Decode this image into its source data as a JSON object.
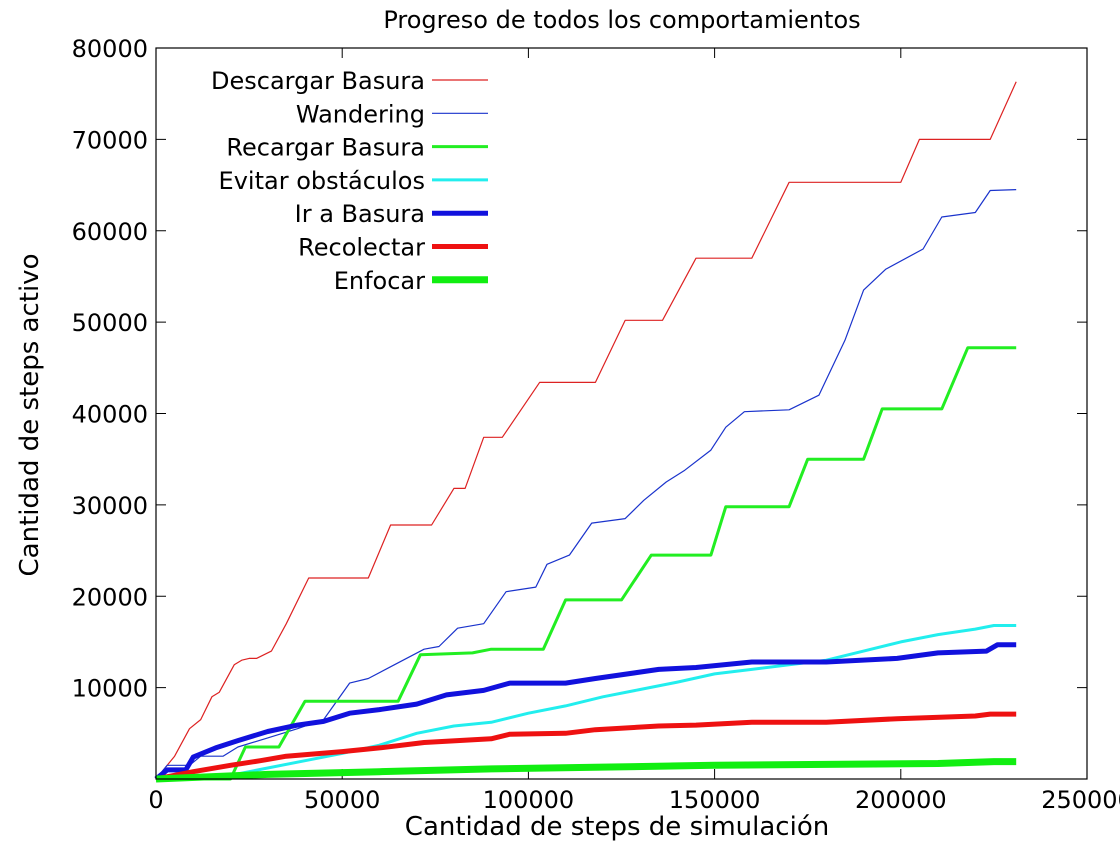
{
  "chart_data": {
    "type": "line",
    "title": "Progreso de todos los comportamientos",
    "xlabel": "Cantidad de steps de simulación",
    "ylabel": "Cantidad de steps activo",
    "xlim": [
      0,
      250000
    ],
    "ylim": [
      0,
      80000
    ],
    "x_ticks": [
      "0",
      "50000",
      "100000",
      "150000",
      "200000",
      "250000"
    ],
    "y_ticks": [
      "10000",
      "20000",
      "30000",
      "40000",
      "50000",
      "60000",
      "70000",
      "80000"
    ],
    "grid": false,
    "legend_position": "top-left",
    "series": [
      {
        "name": "Descargar Basura",
        "color": "#dd2222",
        "line": "thin",
        "points": [
          [
            0,
            0
          ],
          [
            5000,
            2500
          ],
          [
            9000,
            5500
          ],
          [
            12000,
            6500
          ],
          [
            15000,
            9000
          ],
          [
            17000,
            9500
          ],
          [
            21000,
            12500
          ],
          [
            23000,
            13000
          ],
          [
            25000,
            13200
          ],
          [
            27000,
            13200
          ],
          [
            31000,
            14000
          ],
          [
            35000,
            17000
          ],
          [
            41000,
            22000
          ],
          [
            57000,
            22000
          ],
          [
            63000,
            27800
          ],
          [
            74000,
            27800
          ],
          [
            80000,
            31800
          ],
          [
            83000,
            31800
          ],
          [
            88000,
            37400
          ],
          [
            93000,
            37400
          ],
          [
            103000,
            43400
          ],
          [
            118000,
            43400
          ],
          [
            126000,
            50200
          ],
          [
            136000,
            50200
          ],
          [
            145000,
            57000
          ],
          [
            160000,
            57000
          ],
          [
            170000,
            65300
          ],
          [
            200000,
            65300
          ],
          [
            205000,
            70000
          ],
          [
            224000,
            70000
          ],
          [
            231000,
            76300
          ]
        ]
      },
      {
        "name": "Wandering",
        "color": "#1a33cc",
        "line": "thin",
        "points": [
          [
            0,
            0
          ],
          [
            3000,
            1500
          ],
          [
            9000,
            1500
          ],
          [
            12000,
            2500
          ],
          [
            18000,
            2500
          ],
          [
            22000,
            3500
          ],
          [
            30000,
            4500
          ],
          [
            38000,
            5500
          ],
          [
            45000,
            6500
          ],
          [
            52000,
            10500
          ],
          [
            57000,
            11000
          ],
          [
            64000,
            12500
          ],
          [
            72000,
            14200
          ],
          [
            76000,
            14500
          ],
          [
            81000,
            16500
          ],
          [
            88000,
            17000
          ],
          [
            94000,
            20500
          ],
          [
            102000,
            21000
          ],
          [
            105000,
            23500
          ],
          [
            111000,
            24500
          ],
          [
            117000,
            28000
          ],
          [
            126000,
            28500
          ],
          [
            131000,
            30500
          ],
          [
            137000,
            32500
          ],
          [
            142000,
            33800
          ],
          [
            149000,
            36000
          ],
          [
            153000,
            38500
          ],
          [
            158000,
            40200
          ],
          [
            170000,
            40400
          ],
          [
            178000,
            42000
          ],
          [
            185000,
            48000
          ],
          [
            190000,
            53500
          ],
          [
            196000,
            55800
          ],
          [
            206000,
            58000
          ],
          [
            211000,
            61500
          ],
          [
            220000,
            62000
          ],
          [
            224000,
            64400
          ],
          [
            231000,
            64500
          ]
        ]
      },
      {
        "name": "Recargar Basura",
        "color": "#22ee22",
        "line": "medium",
        "points": [
          [
            0,
            0
          ],
          [
            20000,
            0
          ],
          [
            24000,
            3500
          ],
          [
            33000,
            3500
          ],
          [
            40000,
            8500
          ],
          [
            65000,
            8500
          ],
          [
            71000,
            13600
          ],
          [
            85000,
            13800
          ],
          [
            90000,
            14200
          ],
          [
            104000,
            14200
          ],
          [
            110000,
            19600
          ],
          [
            125000,
            19600
          ],
          [
            133000,
            24500
          ],
          [
            149000,
            24500
          ],
          [
            153000,
            29800
          ],
          [
            170000,
            29800
          ],
          [
            175000,
            35000
          ],
          [
            190000,
            35000
          ],
          [
            195000,
            40500
          ],
          [
            211000,
            40500
          ],
          [
            218000,
            47200
          ],
          [
            231000,
            47200
          ]
        ]
      },
      {
        "name": "Evitar obstáculos",
        "color": "#22eeee",
        "line": "medium",
        "points": [
          [
            0,
            0
          ],
          [
            20000,
            400
          ],
          [
            30000,
            1200
          ],
          [
            40000,
            2000
          ],
          [
            50000,
            2800
          ],
          [
            60000,
            3700
          ],
          [
            70000,
            5000
          ],
          [
            80000,
            5800
          ],
          [
            90000,
            6200
          ],
          [
            100000,
            7200
          ],
          [
            110000,
            8000
          ],
          [
            120000,
            9000
          ],
          [
            130000,
            9800
          ],
          [
            140000,
            10600
          ],
          [
            150000,
            11500
          ],
          [
            160000,
            12000
          ],
          [
            170000,
            12500
          ],
          [
            180000,
            13000
          ],
          [
            190000,
            14000
          ],
          [
            200000,
            15000
          ],
          [
            210000,
            15800
          ],
          [
            220000,
            16400
          ],
          [
            225000,
            16800
          ],
          [
            231000,
            16800
          ]
        ]
      },
      {
        "name": "Ir a Basura",
        "color": "#1111dd",
        "line": "thick",
        "points": [
          [
            0,
            0
          ],
          [
            3000,
            1000
          ],
          [
            8000,
            1000
          ],
          [
            10000,
            2400
          ],
          [
            16000,
            3400
          ],
          [
            22000,
            4200
          ],
          [
            30000,
            5200
          ],
          [
            38000,
            5900
          ],
          [
            45000,
            6300
          ],
          [
            52000,
            7200
          ],
          [
            60000,
            7600
          ],
          [
            70000,
            8200
          ],
          [
            78000,
            9200
          ],
          [
            88000,
            9700
          ],
          [
            95000,
            10500
          ],
          [
            110000,
            10500
          ],
          [
            118000,
            11000
          ],
          [
            135000,
            12000
          ],
          [
            145000,
            12200
          ],
          [
            160000,
            12800
          ],
          [
            180000,
            12800
          ],
          [
            199000,
            13200
          ],
          [
            210000,
            13800
          ],
          [
            223000,
            14000
          ],
          [
            226000,
            14700
          ],
          [
            231000,
            14700
          ]
        ]
      },
      {
        "name": "Recolectar",
        "color": "#ee1111",
        "line": "thick",
        "points": [
          [
            0,
            0
          ],
          [
            10000,
            800
          ],
          [
            20000,
            1500
          ],
          [
            28000,
            2000
          ],
          [
            35000,
            2500
          ],
          [
            50000,
            3000
          ],
          [
            60000,
            3400
          ],
          [
            72000,
            4000
          ],
          [
            90000,
            4400
          ],
          [
            95000,
            4900
          ],
          [
            110000,
            5000
          ],
          [
            118000,
            5400
          ],
          [
            135000,
            5800
          ],
          [
            145000,
            5900
          ],
          [
            160000,
            6200
          ],
          [
            180000,
            6200
          ],
          [
            199000,
            6600
          ],
          [
            220000,
            6900
          ],
          [
            224000,
            7100
          ],
          [
            231000,
            7100
          ]
        ]
      },
      {
        "name": "Enfocar",
        "color": "#11ee11",
        "line": "thicker",
        "points": [
          [
            0,
            0
          ],
          [
            30000,
            500
          ],
          [
            60000,
            800
          ],
          [
            90000,
            1100
          ],
          [
            120000,
            1300
          ],
          [
            150000,
            1500
          ],
          [
            180000,
            1600
          ],
          [
            210000,
            1700
          ],
          [
            225000,
            1900
          ],
          [
            231000,
            1900
          ]
        ]
      }
    ]
  }
}
